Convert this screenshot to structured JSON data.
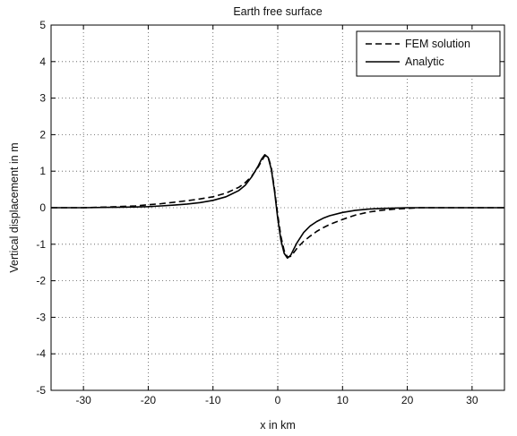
{
  "chart_data": {
    "type": "line",
    "title": "Earth free surface",
    "xlabel": "x in km",
    "ylabel": "Vertical displacement in m",
    "xlim": [
      -35,
      35
    ],
    "ylim": [
      -5,
      5
    ],
    "xticks": [
      -30,
      -20,
      -10,
      0,
      10,
      20,
      30
    ],
    "yticks": [
      -5,
      -4,
      -3,
      -2,
      -1,
      0,
      1,
      2,
      3,
      4,
      5
    ],
    "grid": true,
    "legend_position": "top-right",
    "series": [
      {
        "name": "FEM solution",
        "style": "dashed",
        "color": "#000000",
        "x": [
          -35,
          -30,
          -26,
          -22,
          -20,
          -18,
          -16,
          -14,
          -12,
          -10,
          -8,
          -6,
          -5,
          -4,
          -3,
          -2.5,
          -2,
          -1.5,
          -1,
          -0.5,
          0,
          0.5,
          1,
          1.5,
          2,
          2.5,
          3,
          4,
          5,
          6,
          7,
          8,
          10,
          12,
          14,
          16,
          18,
          20,
          22,
          26,
          30,
          35
        ],
        "y": [
          0,
          0,
          0.02,
          0.05,
          0.08,
          0.11,
          0.15,
          0.19,
          0.24,
          0.3,
          0.4,
          0.56,
          0.69,
          0.87,
          1.12,
          1.28,
          1.42,
          1.4,
          1.1,
          0.5,
          -0.2,
          -0.8,
          -1.18,
          -1.35,
          -1.33,
          -1.22,
          -1.1,
          -0.92,
          -0.78,
          -0.65,
          -0.55,
          -0.46,
          -0.32,
          -0.2,
          -0.12,
          -0.07,
          -0.04,
          -0.02,
          0,
          0,
          0,
          0
        ]
      },
      {
        "name": "Analytic",
        "style": "solid",
        "color": "#000000",
        "x": [
          -35,
          -30,
          -26,
          -22,
          -20,
          -18,
          -16,
          -14,
          -12,
          -10,
          -8,
          -6,
          -5,
          -4,
          -3,
          -2.5,
          -2,
          -1.5,
          -1,
          -0.5,
          0,
          0.5,
          1,
          1.5,
          2,
          2.5,
          3,
          4,
          5,
          6,
          7,
          8,
          10,
          12,
          14,
          16,
          18,
          20,
          22,
          26,
          30,
          35
        ],
        "y": [
          0,
          0,
          0.01,
          0.02,
          0.03,
          0.05,
          0.07,
          0.1,
          0.14,
          0.2,
          0.3,
          0.47,
          0.62,
          0.85,
          1.15,
          1.33,
          1.45,
          1.38,
          1.05,
          0.45,
          -0.3,
          -0.9,
          -1.25,
          -1.38,
          -1.3,
          -1.12,
          -0.95,
          -0.68,
          -0.5,
          -0.38,
          -0.29,
          -0.22,
          -0.13,
          -0.07,
          -0.04,
          -0.02,
          -0.01,
          0,
          0,
          0,
          0,
          0
        ]
      }
    ]
  }
}
